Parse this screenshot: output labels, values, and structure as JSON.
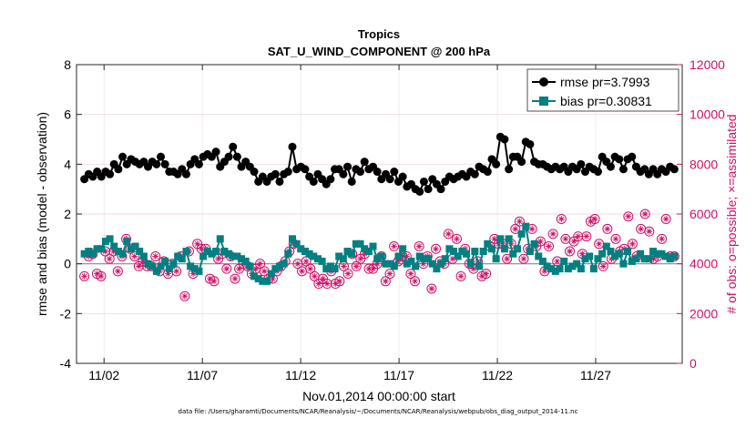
{
  "chart_data": {
    "type": "line",
    "title": "Tropics",
    "subtitle": "SAT_U_WIND_COMPONENT @ 200 hPa",
    "xlabel": "Nov.01,2014 00:00:00 start",
    "ylabel": "rmse and bias (model - observation)",
    "y2label": "# of obs: o=possible; ×=assimilated",
    "xlim": [
      0.6,
      31.4
    ],
    "ylim": [
      -4,
      8
    ],
    "y2lim": [
      0,
      12000
    ],
    "x_ticks": [
      2,
      7,
      12,
      17,
      22,
      27
    ],
    "x_tick_labels": [
      "11/02",
      "11/07",
      "11/12",
      "11/17",
      "11/22",
      "11/27"
    ],
    "y_ticks": [
      -4,
      -2,
      0,
      2,
      4,
      6,
      8
    ],
    "y_tick_labels": [
      "-4",
      "-2",
      "0",
      "2",
      "4",
      "6",
      "8"
    ],
    "y2_ticks": [
      0,
      2000,
      4000,
      6000,
      8000,
      10000,
      12000
    ],
    "y2_tick_labels": [
      "0",
      "2000",
      "4000",
      "6000",
      "8000",
      "10000",
      "12000"
    ],
    "grid": true,
    "legend_position": "top-right",
    "colors": {
      "rmse": "#000000",
      "bias": "#008080",
      "obs": "#cc1066",
      "zero_line": "#8a8a8a"
    },
    "series": [
      {
        "name": "rmse",
        "legend": "rmse pr=3.7993",
        "axis": "left",
        "values": [
          3.4,
          3.6,
          3.5,
          3.7,
          3.5,
          3.7,
          3.6,
          4.0,
          3.8,
          4.3,
          4.0,
          4.2,
          4.1,
          4.0,
          4.1,
          3.9,
          4.1,
          4.0,
          4.3,
          4.0,
          3.7,
          3.7,
          3.6,
          3.8,
          3.6,
          4.0,
          4.2,
          4.0,
          4.3,
          4.4,
          4.3,
          4.5,
          3.9,
          4.1,
          4.3,
          4.7,
          4.3,
          3.9,
          4.1,
          3.9,
          3.7,
          3.3,
          3.5,
          3.3,
          3.5,
          3.6,
          3.3,
          3.6,
          3.7,
          4.7,
          3.8,
          3.9,
          3.8,
          3.5,
          3.3,
          3.6,
          3.4,
          3.2,
          3.4,
          3.8,
          3.8,
          3.6,
          3.9,
          3.3,
          3.8,
          3.7,
          4.1,
          3.8,
          3.9,
          3.7,
          3.4,
          3.6,
          3.4,
          3.7,
          3.3,
          3.5,
          3.1,
          3.2,
          3.0,
          2.9,
          3.3,
          3.0,
          3.4,
          3.2,
          3.0,
          3.3,
          3.5,
          3.4,
          3.5,
          3.6,
          3.5,
          3.7,
          3.6,
          3.9,
          3.8,
          3.7,
          4.2,
          4.0,
          5.1,
          5.0,
          3.8,
          4.3,
          4.3,
          4.1,
          4.9,
          4.8,
          4.1,
          4.0,
          4.0,
          3.9,
          3.8,
          3.9,
          3.8,
          3.9,
          3.7,
          3.9,
          3.8,
          4.0,
          3.7,
          3.9,
          3.8,
          3.7,
          4.3,
          4.1,
          3.9,
          4.3,
          4.2,
          3.8,
          4.2,
          4.3,
          3.9,
          3.7,
          3.8,
          3.6,
          3.8,
          3.6,
          3.8,
          3.7,
          3.9,
          3.8
        ]
      },
      {
        "name": "bias",
        "legend": "bias pr=0.30831",
        "axis": "left",
        "values": [
          0.4,
          0.5,
          0.4,
          0.6,
          0.6,
          0.9,
          1.0,
          0.7,
          0.5,
          0.4,
          0.9,
          0.6,
          0.7,
          0.5,
          0.3,
          0.0,
          -0.1,
          -0.3,
          -0.1,
          0.1,
          -0.2,
          0.0,
          0.3,
          0.2,
          0.5,
          -0.1,
          -0.2,
          -0.3,
          0.3,
          0.5,
          0.4,
          0.5,
          1.0,
          0.5,
          0.4,
          0.3,
          0.3,
          0.2,
          0.1,
          -0.1,
          -0.5,
          -0.6,
          -0.7,
          -0.7,
          -0.4,
          -0.2,
          -0.1,
          0.0,
          0.4,
          1.0,
          0.8,
          0.6,
          0.5,
          0.4,
          0.3,
          0.2,
          0.1,
          -0.2,
          -0.1,
          -0.2,
          0.3,
          0.2,
          0.5,
          0.4,
          0.8,
          0.8,
          0.6,
          0.5,
          0.7,
          0.2,
          0.3,
          0.0,
          0.0,
          -0.1,
          0.3,
          0.6,
          0.0,
          0.1,
          -0.1,
          0.3,
          0.2,
          0.2,
          0.0,
          -0.2,
          0.0,
          0.2,
          0.6,
          0.5,
          0.3,
          0.5,
          0.4,
          0.0,
          0.5,
          -0.1,
          0.5,
          0.8,
          0.6,
          0.2,
          1.0,
          0.6,
          1.0,
          0.4,
          0.6,
          1.2,
          1.5,
          0.5,
          0.8,
          0.3,
          0.1,
          -0.1,
          -0.2,
          -0.3,
          -0.2,
          0.1,
          -0.2,
          -0.1,
          0.0,
          -0.2,
          0.2,
          0.3,
          -0.2,
          0.2,
          0.4,
          0.7,
          0.5,
          0.3,
          0.4,
          0.0,
          0.5,
          0.1,
          0.2,
          0.4,
          0.2,
          0.2,
          0.5,
          0.4,
          0.4,
          0.3,
          0.2,
          0.3
        ]
      },
      {
        "name": "obs",
        "legend": "",
        "axis": "right",
        "values": [
          3500,
          4300,
          4400,
          3600,
          3500,
          4500,
          4200,
          4500,
          3700,
          4300,
          5000,
          4600,
          4300,
          3900,
          4100,
          3900,
          3900,
          4300,
          3700,
          4100,
          3600,
          4000,
          3700,
          4300,
          2700,
          4500,
          3600,
          4800,
          4600,
          4600,
          3400,
          3300,
          4200,
          4400,
          3800,
          4300,
          3400,
          3800,
          4000,
          3900,
          3600,
          3800,
          4000,
          3700,
          3400,
          3400,
          3700,
          3900,
          4100,
          4500,
          4800,
          4000,
          3700,
          4100,
          3800,
          3500,
          3200,
          3400,
          3200,
          3700,
          3200,
          3300,
          3900,
          3600,
          4400,
          3900,
          4200,
          4400,
          3800,
          3800,
          4000,
          4300,
          3300,
          3600,
          4700,
          4100,
          4300,
          4300,
          3600,
          3300,
          4700,
          4000,
          4300,
          3000,
          4600,
          4100,
          4000,
          5200,
          4200,
          5000,
          3500,
          4600,
          4000,
          3800,
          4100,
          3500,
          3600,
          4700,
          5000,
          4800,
          4800,
          4200,
          4800,
          5400,
          5700,
          4200,
          4600,
          5400,
          4700,
          4900,
          3700,
          4700,
          5200,
          4100,
          5800,
          5000,
          4500,
          4900,
          5100,
          4400,
          5100,
          5700,
          5800,
          4800,
          3900,
          5400,
          4200,
          5000,
          4500,
          4600,
          5900,
          4800,
          4300,
          5400,
          6000,
          5300,
          4200,
          4300,
          5000,
          5800,
          4300,
          4300
        ]
      }
    ],
    "footer": "data file: /Users/gharamti/Documents/NCAR/Reanalysis/~/Documents/NCAR/Reanalysis/webpub/obs_diag_output_2014-11.nc"
  }
}
